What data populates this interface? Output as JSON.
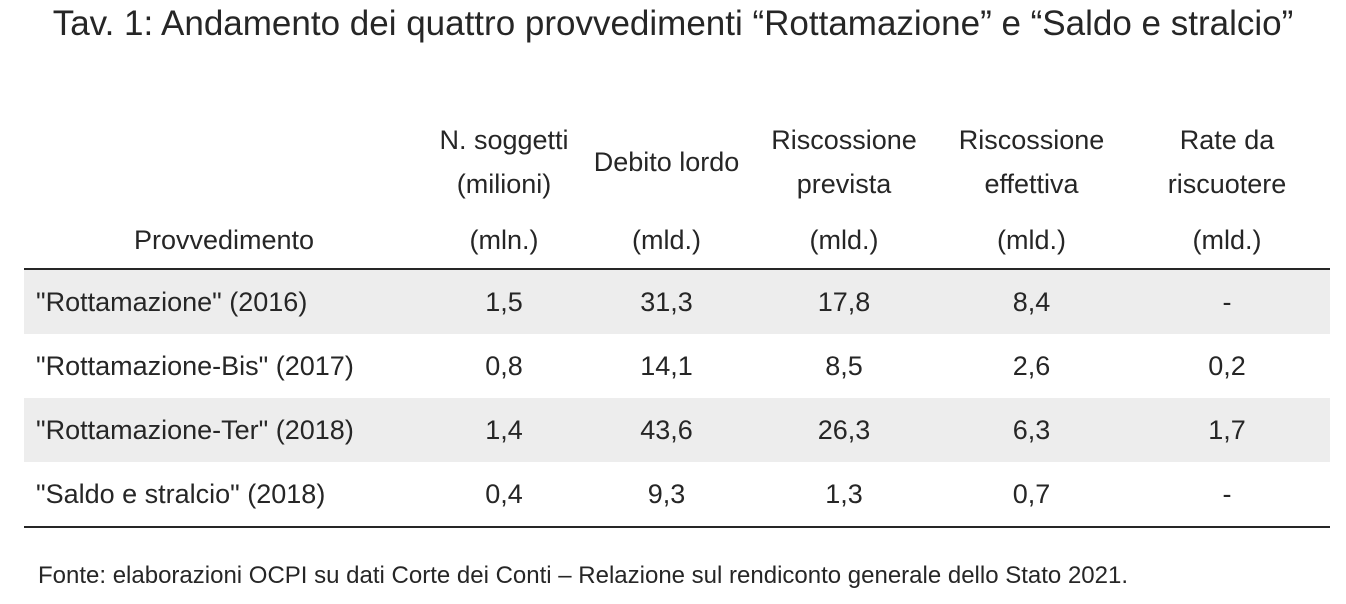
{
  "title": "Tav. 1: Andamento dei quattro provvedimenti “Rottamazione” e “Saldo e stralcio”",
  "header": {
    "row_label": "Provvedimento",
    "columns": [
      {
        "name": "N. soggetti (milioni)",
        "unit": "(mln.)"
      },
      {
        "name": "Debito lordo",
        "unit": "(mld.)"
      },
      {
        "name": "Riscossione prevista",
        "unit": "(mld.)"
      },
      {
        "name": "Riscossione effettiva",
        "unit": "(mld.)"
      },
      {
        "name": "Rate da riscuotere",
        "unit": "(mld.)"
      }
    ]
  },
  "rows": [
    {
      "label": "\"Rottamazione\" (2016)",
      "values": [
        "1,5",
        "31,3",
        "17,8",
        "8,4",
        "-"
      ]
    },
    {
      "label": "\"Rottamazione-Bis\" (2017)",
      "values": [
        "0,8",
        "14,1",
        "8,5",
        "2,6",
        "0,2"
      ]
    },
    {
      "label": "\"Rottamazione-Ter\" (2018)",
      "values": [
        "1,4",
        "43,6",
        "26,3",
        "6,3",
        "1,7"
      ]
    },
    {
      "label": "\"Saldo e stralcio\" (2018)",
      "values": [
        "0,4",
        "9,3",
        "1,3",
        "0,7",
        "-"
      ]
    }
  ],
  "source": "Fonte: elaborazioni OCPI su dati Corte dei Conti – Relazione sul rendiconto generale dello Stato 2021."
}
